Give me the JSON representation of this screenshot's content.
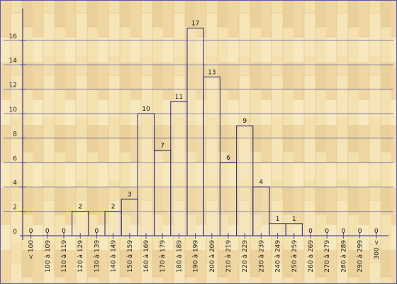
{
  "chart_data": {
    "type": "bar",
    "categories": [
      "< 100",
      "100 à 109",
      "110 à 119",
      "120 à 129",
      "130 à 139",
      "140 à 149",
      "150 à 159",
      "160 à 169",
      "170 à 179",
      "180 à 189",
      "190 à 199",
      "200 à 209",
      "210 à 219",
      "220 à 229",
      "230 à 239",
      "240 à 249",
      "250 à 259",
      "260 à 269",
      "270 à 279",
      "280 à 289",
      "290 à 299",
      "300 <"
    ],
    "values": [
      0,
      0,
      0,
      2,
      0,
      2,
      3,
      10,
      7,
      11,
      17,
      13,
      6,
      9,
      4,
      1,
      1,
      0,
      0,
      0,
      0,
      0
    ],
    "data_labels": [
      "0",
      "0",
      "0",
      "2",
      "0",
      "2",
      "3",
      "10",
      "7",
      "11",
      "17",
      "13",
      "6",
      "9",
      "4",
      "1",
      "1",
      "0",
      "0",
      "0",
      "0",
      "0"
    ],
    "y_ticks": [
      "0",
      "2",
      "4",
      "6",
      "8",
      "10",
      "12",
      "14",
      "16"
    ],
    "ylim": [
      0,
      18.5
    ],
    "grid": true,
    "colors": {
      "background": "#f2deae",
      "grid": "#5a5aa6",
      "axis": "#4a4a98",
      "bar_fill": "#f6e7bf",
      "bar_stroke": "#33337a"
    }
  }
}
